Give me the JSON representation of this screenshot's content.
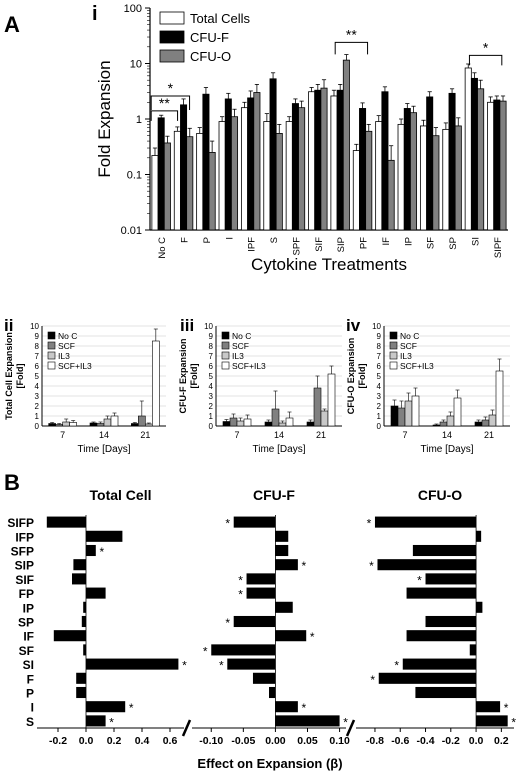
{
  "panels": {
    "A": "A",
    "B": "B",
    "i": "i",
    "ii": "ii",
    "iii": "iii",
    "iv": "iv"
  },
  "chart_data": [
    {
      "id": "A-i",
      "type": "bar",
      "xlabel": "Cytokine Treatments",
      "ylabel": "Fold Expansion",
      "yscale": "log",
      "ylim": [
        0.01,
        100
      ],
      "yticks": [
        "0.01",
        "0.1",
        "1",
        "10",
        "100"
      ],
      "categories": [
        "No C",
        "F",
        "P",
        "I",
        "IPF",
        "S",
        "SPF",
        "SIF",
        "SIP",
        "PF",
        "IF",
        "IP",
        "SF",
        "SP",
        "SI",
        "SIPF"
      ],
      "series": [
        {
          "name": "Total Cells",
          "color": "#ffffff",
          "values": [
            0.22,
            0.6,
            0.55,
            0.9,
            1.6,
            0.9,
            0.9,
            3.1,
            2.6,
            0.27,
            0.9,
            0.8,
            0.75,
            0.65,
            8.3,
            2.0
          ],
          "errors": [
            0.08,
            0.12,
            0.15,
            0.2,
            0.4,
            0.35,
            0.2,
            0.6,
            0.7,
            0.08,
            0.25,
            0.2,
            0.2,
            0.2,
            1.5,
            0.5
          ]
        },
        {
          "name": "CFU-F",
          "color": "#000000",
          "values": [
            1.05,
            1.8,
            2.8,
            2.3,
            2.4,
            5.3,
            1.9,
            3.3,
            3.3,
            1.55,
            3.1,
            1.55,
            2.5,
            2.9,
            5.4,
            2.2
          ],
          "errors": [
            0.12,
            0.5,
            0.9,
            0.6,
            0.8,
            1.5,
            0.4,
            0.9,
            0.9,
            0.4,
            0.7,
            0.35,
            0.6,
            0.6,
            1.4,
            0.4
          ]
        },
        {
          "name": "CFU-O",
          "color": "#808080",
          "values": [
            0.37,
            0.48,
            0.25,
            1.1,
            3.0,
            0.55,
            1.6,
            3.6,
            11.5,
            0.6,
            0.18,
            1.3,
            0.5,
            0.75,
            3.5,
            2.1
          ],
          "errors": [
            0.12,
            0.2,
            0.15,
            0.4,
            1.2,
            0.25,
            0.5,
            1.5,
            3.0,
            0.2,
            0.15,
            0.4,
            0.2,
            0.3,
            1.5,
            0.5
          ]
        }
      ],
      "annotations": [
        {
          "text": "*",
          "from": "No C",
          "to": "F"
        },
        {
          "text": "**",
          "from": "No C",
          "to": "F"
        },
        {
          "text": "**",
          "from": "SIP",
          "to": "PF"
        },
        {
          "text": "*",
          "from": "SI",
          "to": "SIPF"
        }
      ],
      "legend": "top-left"
    },
    {
      "id": "A-ii",
      "type": "bar",
      "xlabel": "Time [Days]",
      "ylabel": "Total Cell Expansion [Fold]",
      "ylim": [
        0,
        10
      ],
      "yticks": [
        "0",
        "1",
        "2",
        "3",
        "4",
        "5",
        "6",
        "7",
        "8",
        "9",
        "10"
      ],
      "categories": [
        "7",
        "14",
        "21"
      ],
      "series": [
        {
          "name": "No C",
          "color": "#000000",
          "values": [
            0.25,
            0.3,
            0.25
          ],
          "errors": [
            0.1,
            0.1,
            0.1
          ]
        },
        {
          "name": "SCF",
          "color": "#808080",
          "values": [
            0.15,
            0.25,
            1.0
          ],
          "errors": [
            0.1,
            0.15,
            1.5
          ]
        },
        {
          "name": "IL3",
          "color": "#c8c8c8",
          "values": [
            0.4,
            0.7,
            0.2
          ],
          "errors": [
            0.3,
            0.3,
            0.1
          ]
        },
        {
          "name": "SCF+IL3",
          "color": "#ffffff",
          "values": [
            0.35,
            1.0,
            8.5
          ],
          "errors": [
            0.2,
            0.3,
            1.2
          ]
        }
      ],
      "legend": "top-left"
    },
    {
      "id": "A-iii",
      "type": "bar",
      "xlabel": "Time [Days]",
      "ylabel": "CFU-F Expansion [Fold]",
      "ylim": [
        0,
        10
      ],
      "yticks": [
        "0",
        "1",
        "2",
        "3",
        "4",
        "5",
        "6",
        "7",
        "8",
        "9",
        "10"
      ],
      "categories": [
        "7",
        "14",
        "21"
      ],
      "series": [
        {
          "name": "No C",
          "color": "#000000",
          "values": [
            0.45,
            0.4,
            0.4
          ],
          "errors": [
            0.2,
            0.2,
            0.2
          ]
        },
        {
          "name": "SCF",
          "color": "#808080",
          "values": [
            0.8,
            1.7,
            3.8
          ],
          "errors": [
            0.4,
            1.8,
            1.2
          ]
        },
        {
          "name": "IL3",
          "color": "#c8c8c8",
          "values": [
            0.5,
            0.3,
            1.5
          ],
          "errors": [
            0.3,
            0.2,
            0.2
          ]
        },
        {
          "name": "SCF+IL3",
          "color": "#ffffff",
          "values": [
            0.7,
            0.8,
            5.2
          ],
          "errors": [
            0.4,
            0.6,
            0.8
          ]
        }
      ],
      "legend": "top-left"
    },
    {
      "id": "A-iv",
      "type": "bar",
      "xlabel": "Time [Days]",
      "ylabel": "CFU-O Expansion [Fold]",
      "ylim": [
        0,
        10
      ],
      "yticks": [
        "0",
        "1",
        "2",
        "3",
        "4",
        "5",
        "6",
        "7",
        "8",
        "9",
        "10"
      ],
      "categories": [
        "7",
        "14",
        "21"
      ],
      "series": [
        {
          "name": "No C",
          "color": "#000000",
          "values": [
            2.0,
            0.1,
            0.4
          ],
          "errors": [
            0.6,
            0.1,
            0.2
          ]
        },
        {
          "name": "SCF",
          "color": "#808080",
          "values": [
            1.8,
            0.4,
            0.6
          ],
          "errors": [
            0.7,
            0.2,
            0.3
          ]
        },
        {
          "name": "IL3",
          "color": "#c8c8c8",
          "values": [
            2.5,
            1.0,
            1.1
          ],
          "errors": [
            0.8,
            0.4,
            0.5
          ]
        },
        {
          "name": "SCF+IL3",
          "color": "#ffffff",
          "values": [
            3.0,
            2.8,
            5.5
          ],
          "errors": [
            0.8,
            0.8,
            1.2
          ]
        }
      ],
      "legend": "top-left"
    },
    {
      "id": "B",
      "type": "bar",
      "orientation": "horizontal",
      "xlabel": "Effect on Expansion (β)",
      "categories": [
        "SIFP",
        "IFP",
        "SFP",
        "SIP",
        "SIF",
        "FP",
        "IP",
        "SP",
        "IF",
        "SF",
        "SI",
        "F",
        "P",
        "I",
        "S"
      ],
      "panels": [
        {
          "title": "Total Cell",
          "xlim": [
            -0.35,
            0.7
          ],
          "xticks": [
            "-0.2",
            "0.0",
            "0.2",
            "0.4",
            "0.6"
          ],
          "values": [
            -0.28,
            0.26,
            0.07,
            -0.09,
            -0.1,
            0.14,
            -0.02,
            -0.03,
            -0.23,
            -0.02,
            0.66,
            -0.07,
            -0.07,
            0.28,
            0.14
          ],
          "significant": [
            false,
            false,
            true,
            false,
            false,
            false,
            false,
            false,
            false,
            false,
            true,
            false,
            false,
            true,
            true
          ],
          "color": "#000000"
        },
        {
          "title": "CFU-F",
          "xlim": [
            -0.13,
            0.11
          ],
          "xticks": [
            "-0.10",
            "-0.05",
            "0.00",
            "0.05",
            "0.10"
          ],
          "values": [
            -0.065,
            0.02,
            0.02,
            0.035,
            -0.045,
            -0.045,
            0.027,
            -0.065,
            0.048,
            -0.1,
            -0.075,
            -0.035,
            -0.01,
            0.035,
            0.1
          ],
          "significant": [
            true,
            false,
            false,
            true,
            true,
            true,
            false,
            true,
            true,
            true,
            true,
            false,
            false,
            true,
            true
          ],
          "color": "#000000"
        },
        {
          "title": "CFU-O",
          "xlim": [
            -0.95,
            0.3
          ],
          "xticks": [
            "-0.8",
            "-0.6",
            "-0.4",
            "-0.2",
            "0.0",
            "0.2"
          ],
          "values": [
            -0.8,
            0.04,
            -0.5,
            -0.78,
            -0.4,
            -0.55,
            0.05,
            -0.4,
            -0.55,
            -0.05,
            -0.58,
            -0.77,
            -0.48,
            0.19,
            0.25
          ],
          "significant": [
            true,
            false,
            false,
            true,
            true,
            false,
            false,
            false,
            false,
            false,
            true,
            true,
            false,
            true,
            true
          ],
          "color": "#000000"
        }
      ]
    }
  ]
}
